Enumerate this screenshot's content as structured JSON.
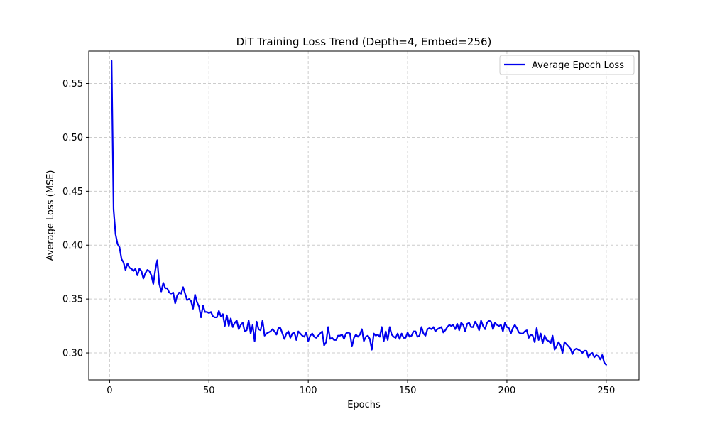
{
  "chart_data": {
    "type": "line",
    "title": "DiT Training Loss Trend (Depth=4, Embed=256)",
    "xlabel": "Epochs",
    "ylabel": "Average Loss (MSE)",
    "xlim": [
      -10.5,
      266.5
    ],
    "ylim": [
      0.275,
      0.58
    ],
    "xticks": [
      0,
      50,
      100,
      150,
      200,
      250
    ],
    "yticks": [
      0.3,
      0.35,
      0.4,
      0.45,
      0.5,
      0.55
    ],
    "ytick_labels": [
      "0.30",
      "0.35",
      "0.40",
      "0.45",
      "0.50",
      "0.55"
    ],
    "grid": true,
    "grid_style": "dashed",
    "legend": "top-right",
    "colors": {
      "series": "#0000ee",
      "grid": "#cccccc",
      "axis": "#000000"
    },
    "series": [
      {
        "name": "Average Epoch Loss",
        "x_start": 1,
        "x_step": 1,
        "values": [
          0.571,
          0.433,
          0.41,
          0.401,
          0.398,
          0.387,
          0.384,
          0.377,
          0.383,
          0.379,
          0.378,
          0.376,
          0.378,
          0.372,
          0.378,
          0.376,
          0.369,
          0.374,
          0.377,
          0.376,
          0.372,
          0.364,
          0.377,
          0.386,
          0.364,
          0.357,
          0.365,
          0.36,
          0.36,
          0.356,
          0.355,
          0.356,
          0.346,
          0.353,
          0.356,
          0.355,
          0.361,
          0.355,
          0.349,
          0.35,
          0.348,
          0.341,
          0.354,
          0.347,
          0.343,
          0.333,
          0.344,
          0.338,
          0.338,
          0.337,
          0.338,
          0.334,
          0.333,
          0.333,
          0.339,
          0.334,
          0.336,
          0.325,
          0.335,
          0.325,
          0.332,
          0.324,
          0.328,
          0.33,
          0.322,
          0.326,
          0.328,
          0.32,
          0.321,
          0.33,
          0.318,
          0.326,
          0.311,
          0.329,
          0.322,
          0.321,
          0.33,
          0.316,
          0.318,
          0.319,
          0.32,
          0.322,
          0.32,
          0.317,
          0.323,
          0.323,
          0.318,
          0.313,
          0.318,
          0.32,
          0.314,
          0.318,
          0.319,
          0.312,
          0.32,
          0.318,
          0.316,
          0.315,
          0.319,
          0.311,
          0.316,
          0.318,
          0.315,
          0.314,
          0.316,
          0.318,
          0.32,
          0.307,
          0.31,
          0.324,
          0.313,
          0.314,
          0.312,
          0.312,
          0.316,
          0.316,
          0.317,
          0.313,
          0.318,
          0.319,
          0.318,
          0.306,
          0.314,
          0.317,
          0.315,
          0.317,
          0.322,
          0.311,
          0.315,
          0.316,
          0.313,
          0.303,
          0.318,
          0.316,
          0.317,
          0.315,
          0.324,
          0.311,
          0.32,
          0.312,
          0.324,
          0.317,
          0.315,
          0.314,
          0.318,
          0.313,
          0.318,
          0.314,
          0.314,
          0.319,
          0.315,
          0.316,
          0.32,
          0.32,
          0.315,
          0.316,
          0.324,
          0.318,
          0.316,
          0.322,
          0.323,
          0.322,
          0.324,
          0.32,
          0.322,
          0.323,
          0.324,
          0.319,
          0.321,
          0.324,
          0.326,
          0.325,
          0.326,
          0.322,
          0.327,
          0.321,
          0.328,
          0.326,
          0.32,
          0.327,
          0.328,
          0.324,
          0.324,
          0.329,
          0.326,
          0.321,
          0.33,
          0.325,
          0.322,
          0.328,
          0.33,
          0.329,
          0.322,
          0.328,
          0.326,
          0.325,
          0.326,
          0.32,
          0.328,
          0.324,
          0.323,
          0.318,
          0.323,
          0.326,
          0.323,
          0.319,
          0.318,
          0.318,
          0.32,
          0.321,
          0.314,
          0.317,
          0.316,
          0.31,
          0.323,
          0.312,
          0.318,
          0.309,
          0.316,
          0.312,
          0.311,
          0.309,
          0.316,
          0.303,
          0.306,
          0.31,
          0.307,
          0.3,
          0.31,
          0.308,
          0.306,
          0.304,
          0.299,
          0.303,
          0.304,
          0.303,
          0.302,
          0.3,
          0.302,
          0.302,
          0.296,
          0.299,
          0.3,
          0.296,
          0.298,
          0.297,
          0.294,
          0.298,
          0.291,
          0.289
        ]
      }
    ]
  }
}
